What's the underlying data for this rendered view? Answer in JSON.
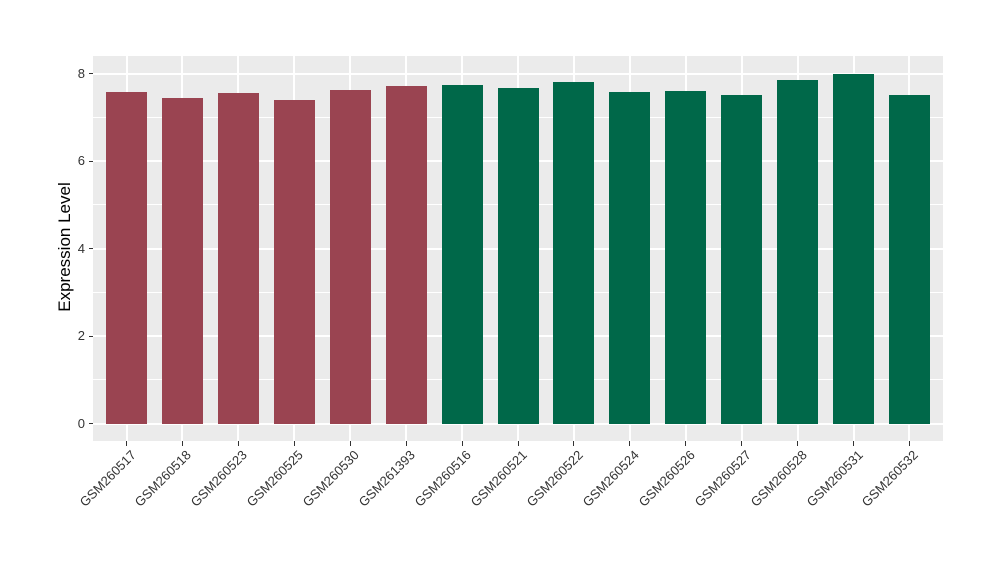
{
  "figure": {
    "background": "#FFFFFF"
  },
  "chart_data": {
    "type": "bar",
    "title": "",
    "xlabel": "",
    "ylabel": "Expression Level",
    "categories": [
      "GSM260517",
      "GSM260518",
      "GSM260523",
      "GSM260525",
      "GSM260530",
      "GSM261393",
      "GSM260516",
      "GSM260521",
      "GSM260522",
      "GSM260524",
      "GSM260526",
      "GSM260527",
      "GSM260528",
      "GSM260531",
      "GSM260532"
    ],
    "values": [
      7.57,
      7.43,
      7.55,
      7.39,
      7.62,
      7.72,
      7.73,
      7.67,
      7.8,
      7.58,
      7.61,
      7.52,
      7.85,
      7.99,
      7.51
    ],
    "bar_colors": [
      "#9A4451",
      "#9A4451",
      "#9A4451",
      "#9A4451",
      "#9A4451",
      "#9A4451",
      "#006849",
      "#006849",
      "#006849",
      "#006849",
      "#006849",
      "#006849",
      "#006849",
      "#006849",
      "#006849"
    ],
    "group_colors": {
      "left_group": "#9A4451",
      "right_group": "#006849"
    },
    "ylim": [
      0,
      8.4
    ],
    "yticks": [
      0,
      2,
      4,
      6,
      8
    ],
    "ytick_labels": [
      "0",
      "2",
      "4",
      "6",
      "8"
    ],
    "yticks_minor": [
      1,
      3,
      5,
      7
    ],
    "x_tick_angle": 45,
    "legend_position": "none",
    "panel_background": "#EBEBEB",
    "gridline_color": "#FFFFFF"
  }
}
